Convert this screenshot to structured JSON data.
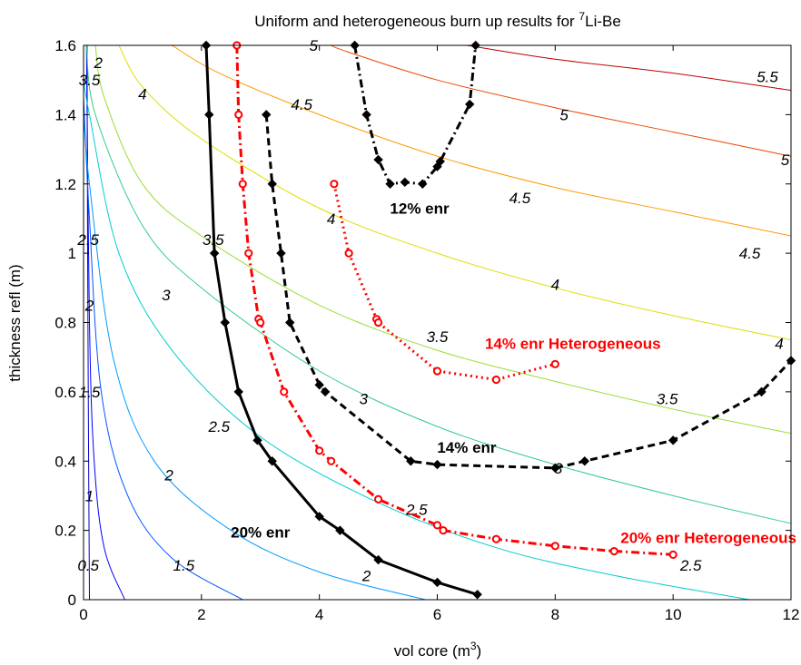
{
  "chart_data": {
    "type": "line",
    "title_main": "Uniform and heterogeneous burn up results for ",
    "title_sup": "7",
    "title_tail": "Li-Be",
    "xlabel_main": "vol core (m",
    "xlabel_sup": "3",
    "xlabel_tail": ")",
    "ylabel": "thickness refl (m)",
    "xlim": [
      0,
      12
    ],
    "ylim": [
      0,
      1.6
    ],
    "x_ticks": [
      "0",
      "2",
      "4",
      "6",
      "8",
      "10",
      "12"
    ],
    "y_ticks": [
      "0",
      "0.2",
      "0.4",
      "0.6",
      "0.8",
      "1",
      "1.2",
      "1.4",
      "1.6"
    ],
    "contours": [
      {
        "level": "0.5",
        "color": "#0000cc",
        "points": [
          [
            0.1,
            0
          ],
          [
            0.09,
            0.3
          ],
          [
            0.08,
            0.6
          ],
          [
            0.07,
            1.0
          ],
          [
            0.06,
            1.6
          ]
        ]
      },
      {
        "level": "1",
        "color": "#0000ff",
        "points": [
          [
            0.7,
            0
          ],
          [
            0.35,
            0.15
          ],
          [
            0.18,
            0.4
          ],
          [
            0.1,
            0.8
          ],
          [
            0.05,
            1.6
          ]
        ]
      },
      {
        "level": "1.5",
        "color": "#0055ff",
        "points": [
          [
            2.7,
            0
          ],
          [
            1.5,
            0.12
          ],
          [
            0.75,
            0.3
          ],
          [
            0.3,
            0.6
          ],
          [
            0.1,
            1.1
          ],
          [
            0.0,
            1.45
          ]
        ]
      },
      {
        "level": "2",
        "color": "#0099ff",
        "points": [
          [
            5.8,
            0
          ],
          [
            4.0,
            0.08
          ],
          [
            2.5,
            0.2
          ],
          [
            1.2,
            0.4
          ],
          [
            0.5,
            0.7
          ],
          [
            0.1,
            1.2
          ],
          [
            0.0,
            1.4
          ]
        ]
      },
      {
        "level": "2.5",
        "color": "#00cccc",
        "points": [
          [
            11.3,
            0
          ],
          [
            9.0,
            0.07
          ],
          [
            7.0,
            0.15
          ],
          [
            5.0,
            0.28
          ],
          [
            3.0,
            0.47
          ],
          [
            1.5,
            0.72
          ],
          [
            0.6,
            1.0
          ],
          [
            0.1,
            1.4
          ],
          [
            0.0,
            1.5
          ]
        ]
      },
      {
        "level": "3",
        "color": "#33cc88",
        "points": [
          [
            12,
            0.22
          ],
          [
            10,
            0.3
          ],
          [
            8,
            0.39
          ],
          [
            6,
            0.5
          ],
          [
            4,
            0.66
          ],
          [
            2,
            0.9
          ],
          [
            1,
            1.08
          ],
          [
            0.2,
            1.4
          ],
          [
            0.05,
            1.6
          ]
        ]
      },
      {
        "level": "3.5",
        "color": "#99dd33",
        "points": [
          [
            12,
            0.48
          ],
          [
            10,
            0.55
          ],
          [
            8,
            0.63
          ],
          [
            6,
            0.72
          ],
          [
            4,
            0.85
          ],
          [
            2,
            1.05
          ],
          [
            1,
            1.2
          ],
          [
            0.35,
            1.45
          ],
          [
            0.2,
            1.6
          ]
        ]
      },
      {
        "level": "4",
        "color": "#dddd00",
        "points": [
          [
            12,
            0.75
          ],
          [
            10,
            0.82
          ],
          [
            8,
            0.9
          ],
          [
            6,
            1.0
          ],
          [
            4,
            1.13
          ],
          [
            2,
            1.33
          ],
          [
            1,
            1.48
          ],
          [
            0.6,
            1.6
          ]
        ]
      },
      {
        "level": "4.5",
        "color": "#ff9900",
        "points": [
          [
            12,
            1.05
          ],
          [
            10,
            1.12
          ],
          [
            8,
            1.19
          ],
          [
            6,
            1.28
          ],
          [
            4,
            1.4
          ],
          [
            2.3,
            1.52
          ],
          [
            1.5,
            1.6
          ]
        ]
      },
      {
        "level": "5",
        "color": "#ee4400",
        "points": [
          [
            12,
            1.28
          ],
          [
            10,
            1.35
          ],
          [
            8,
            1.42
          ],
          [
            6,
            1.5
          ],
          [
            4.5,
            1.58
          ],
          [
            4.2,
            1.6
          ]
        ]
      },
      {
        "level": "5.5",
        "color": "#bb0000",
        "points": [
          [
            12,
            1.47
          ],
          [
            10,
            1.52
          ],
          [
            8,
            1.56
          ],
          [
            6.5,
            1.6
          ]
        ]
      }
    ],
    "contour_labels": [
      {
        "text": "0.5",
        "x": 0.08,
        "y": 0.1
      },
      {
        "text": "1",
        "x": 0.1,
        "y": 0.3
      },
      {
        "text": "1.5",
        "x": 0.1,
        "y": 0.6
      },
      {
        "text": "2",
        "x": 0.1,
        "y": 0.85
      },
      {
        "text": "2.5",
        "x": 0.08,
        "y": 1.04
      },
      {
        "text": "3.5",
        "x": 0.1,
        "y": 1.5
      },
      {
        "text": "2",
        "x": 0.25,
        "y": 1.55
      },
      {
        "text": "4",
        "x": 1.0,
        "y": 1.46
      },
      {
        "text": "3",
        "x": 1.4,
        "y": 0.88
      },
      {
        "text": "2.5",
        "x": 2.3,
        "y": 0.5
      },
      {
        "text": "3.5",
        "x": 2.2,
        "y": 1.04
      },
      {
        "text": "2",
        "x": 1.45,
        "y": 0.36
      },
      {
        "text": "1.5",
        "x": 1.7,
        "y": 0.1
      },
      {
        "text": "2",
        "x": 4.8,
        "y": 0.07
      },
      {
        "text": "2.5",
        "x": 5.65,
        "y": 0.26
      },
      {
        "text": "3",
        "x": 4.75,
        "y": 0.58
      },
      {
        "text": "3.5",
        "x": 6.0,
        "y": 0.76
      },
      {
        "text": "4",
        "x": 4.2,
        "y": 1.1
      },
      {
        "text": "4.5",
        "x": 3.7,
        "y": 1.43
      },
      {
        "text": "5",
        "x": 3.9,
        "y": 1.6
      },
      {
        "text": "4.5",
        "x": 7.4,
        "y": 1.16
      },
      {
        "text": "5",
        "x": 8.15,
        "y": 1.4
      },
      {
        "text": "5.5",
        "x": 11.6,
        "y": 1.51
      },
      {
        "text": "5",
        "x": 11.9,
        "y": 1.27
      },
      {
        "text": "4.5",
        "x": 11.3,
        "y": 1.0
      },
      {
        "text": "4",
        "x": 8.0,
        "y": 0.91
      },
      {
        "text": "4",
        "x": 11.8,
        "y": 0.74
      },
      {
        "text": "3.5",
        "x": 9.9,
        "y": 0.58
      },
      {
        "text": "3",
        "x": 8.05,
        "y": 0.38
      },
      {
        "text": "2.5",
        "x": 10.3,
        "y": 0.1
      }
    ],
    "series": [
      {
        "label": "20% enr",
        "color": "#000000",
        "dash": "solid",
        "marker": "diamond",
        "label_x": 3.0,
        "label_y": 0.195,
        "x": [
          2.08,
          2.13,
          2.22,
          2.4,
          2.63,
          2.95,
          3.2,
          4.0,
          4.35,
          5.0,
          6.0,
          6.68
        ],
        "y": [
          1.6,
          1.4,
          1.0,
          0.8,
          0.6,
          0.46,
          0.4,
          0.24,
          0.2,
          0.115,
          0.05,
          0.015
        ]
      },
      {
        "label": "20% enr Heterogeneous",
        "color": "#ff0000",
        "dash": "dashdot",
        "marker": "circle",
        "label_x": 10.6,
        "label_y": 0.18,
        "x": [
          2.6,
          2.63,
          2.7,
          2.8,
          2.97,
          3.0,
          3.4,
          4.0,
          4.2,
          5.0,
          6.0,
          6.1,
          7.0,
          8.0,
          9.0,
          10.0
        ],
        "y": [
          1.6,
          1.4,
          1.2,
          1.0,
          0.81,
          0.8,
          0.6,
          0.43,
          0.4,
          0.29,
          0.215,
          0.2,
          0.175,
          0.155,
          0.14,
          0.13
        ]
      },
      {
        "label": "14% enr",
        "color": "#000000",
        "dash": "dashed",
        "marker": "diamond",
        "label_x": 6.5,
        "label_y": 0.44,
        "x": [
          3.1,
          3.2,
          3.35,
          3.5,
          4.0,
          4.1,
          5.55,
          6.0,
          8.0,
          8.5,
          10.0,
          11.5,
          12.0
        ],
        "y": [
          1.4,
          1.2,
          1.0,
          0.8,
          0.62,
          0.6,
          0.4,
          0.39,
          0.38,
          0.4,
          0.46,
          0.6,
          0.69
        ]
      },
      {
        "label": "14% enr Heterogeneous",
        "color": "#ff0000",
        "dash": "dotted",
        "marker": "circle",
        "label_x": 8.3,
        "label_y": 0.74,
        "x": [
          4.25,
          4.5,
          4.97,
          5.0,
          6.0,
          7.0,
          8.0
        ],
        "y": [
          1.2,
          1.0,
          0.81,
          0.8,
          0.66,
          0.635,
          0.68
        ]
      },
      {
        "label": "12% enr",
        "color": "#000000",
        "dash": "dashdot",
        "marker": "diamond",
        "label_x": 5.7,
        "label_y": 1.13,
        "x": [
          4.6,
          4.8,
          5.0,
          5.2,
          5.45,
          5.75,
          6.0,
          6.05,
          6.55,
          6.65
        ],
        "y": [
          1.6,
          1.4,
          1.27,
          1.2,
          1.205,
          1.2,
          1.25,
          1.265,
          1.43,
          1.6
        ]
      }
    ]
  }
}
